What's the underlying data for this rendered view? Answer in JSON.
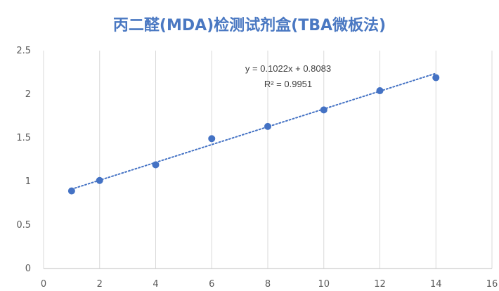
{
  "chart_data": {
    "type": "scatter",
    "title": "丙二醛(MDA)检测试剂盒(TBA微板法)",
    "xlabel": "",
    "ylabel": "",
    "xlim": [
      0,
      16
    ],
    "ylim": [
      0,
      2.5
    ],
    "x_ticks": [
      "0",
      "2",
      "4",
      "6",
      "8",
      "10",
      "12",
      "14",
      "16"
    ],
    "y_ticks": [
      "0",
      "0.5",
      "1",
      "1.5",
      "2",
      "2.5"
    ],
    "grid": "vertical",
    "legend": "none",
    "series": [
      {
        "x": [
          1,
          2,
          4,
          6,
          8,
          10,
          12,
          14
        ],
        "y": [
          0.89,
          1.01,
          1.19,
          1.49,
          1.63,
          1.82,
          2.04,
          2.19
        ],
        "color": "#4472c4",
        "trendline": {
          "type": "linear",
          "slope": 0.1022,
          "intercept": 0.8083,
          "style": "dotted"
        }
      }
    ],
    "annotations": [
      "y = 0.1022x + 0.8083",
      "R² = 0.9951"
    ]
  }
}
